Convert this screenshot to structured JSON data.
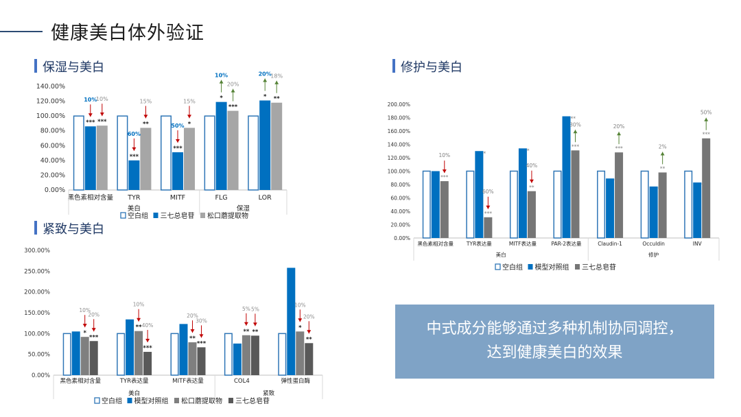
{
  "page": {
    "title": "健康美白体外验证",
    "conclusion_lines": [
      "中式成分能够通过多种机制协同调控，",
      "达到健康美白的效果"
    ],
    "accent_color": "#4472c4"
  },
  "sections": {
    "moisture_whitening": "保湿与美白",
    "repair_whitening": "修护与美白",
    "firming_whitening": "紧致与美白"
  },
  "chart_data": [
    {
      "id": "moisture",
      "type": "bar",
      "categories": [
        "黑色素相对含量",
        "TYR",
        "MITF",
        "FLG",
        "LOR"
      ],
      "groups": [
        {
          "label": "美白",
          "count": 3
        },
        {
          "label": "保湿",
          "count": 2
        }
      ],
      "yticks": [
        "0.00%",
        "20.00%",
        "40.00%",
        "60.00%",
        "80.00%",
        "100.00%",
        "120.00%",
        "140.00%"
      ],
      "ylim": [
        0,
        140
      ],
      "series": [
        {
          "name": "空白组",
          "style": "outline",
          "color": "#2e75b6",
          "values": [
            100,
            100,
            100,
            100,
            100
          ]
        },
        {
          "name": "三七总皂苷",
          "style": "solid",
          "color": "#0070c0",
          "values": [
            86,
            40,
            51,
            119,
            121
          ]
        },
        {
          "name": "松口蘑提取物",
          "style": "solid",
          "color": "#a6a6a6",
          "values": [
            87,
            84,
            84,
            107,
            118
          ]
        }
      ],
      "sig": [
        [
          "***",
          "***"
        ],
        [
          "***",
          "**"
        ],
        [
          "***",
          "*"
        ],
        [
          "*",
          "***"
        ],
        [
          "*",
          "**"
        ]
      ],
      "pct": [
        [
          "10%",
          "10%"
        ],
        [
          "60%",
          "15%"
        ],
        [
          "50%",
          "15%"
        ],
        [
          "10%",
          "20%"
        ],
        [
          "20%",
          "18%"
        ]
      ],
      "dir": [
        "down",
        "down",
        "down",
        "up",
        "up"
      ]
    },
    {
      "id": "repair",
      "type": "bar",
      "categories": [
        "黑色素相对含量",
        "TYR表达量",
        "MITF表达量",
        "PAR-2表达量",
        "Claudin-1",
        "Occuldin",
        "INV"
      ],
      "groups": [
        {
          "label": "美白",
          "count": 4
        },
        {
          "label": "修护",
          "count": 3
        }
      ],
      "yticks": [
        "0.00%",
        "20.00%",
        "40.00%",
        "60.00%",
        "80.00%",
        "100.00%",
        "120.00%",
        "140.00%",
        "160.00%",
        "180.00%",
        "200.00%"
      ],
      "ylim": [
        0,
        200
      ],
      "series": [
        {
          "name": "空白组",
          "style": "outline",
          "color": "#2e75b6",
          "values": [
            100,
            100,
            100,
            100,
            100,
            100,
            100
          ]
        },
        {
          "name": "模型对照组",
          "style": "solid",
          "color": "#0070c0",
          "values": [
            100,
            130,
            134,
            182,
            89,
            77,
            83
          ]
        },
        {
          "name": "三七总皂苷",
          "style": "solid",
          "color": "#767676",
          "values": [
            85,
            31,
            70,
            131,
            128,
            98,
            149
          ]
        }
      ],
      "sig": [
        [
          "",
          "***"
        ],
        [
          "*",
          "***"
        ],
        [
          "*",
          "**"
        ],
        [
          "**",
          "***"
        ],
        [
          "*",
          "***"
        ],
        [
          "*",
          "**"
        ],
        [
          "*",
          "***"
        ]
      ],
      "pct": [
        "10%",
        "60%",
        "40%",
        "30%",
        "20%",
        "2%",
        "50%"
      ],
      "dir": [
        "down",
        "down",
        "down",
        "up",
        "up",
        "up",
        "up"
      ]
    },
    {
      "id": "firming",
      "type": "bar",
      "categories": [
        "黑色素相对含量",
        "TYR表达量",
        "MITF表达量",
        "COL4",
        "弹性蛋白酶"
      ],
      "groups": [
        {
          "label": "美白",
          "count": 3
        },
        {
          "label": "紧致",
          "count": 2
        }
      ],
      "yticks": [
        "0.00%",
        "50.00%",
        "100.00%",
        "150.00%",
        "200.00%",
        "250.00%",
        "300.00%"
      ],
      "ylim": [
        0,
        300
      ],
      "series": [
        {
          "name": "空白组",
          "style": "outline",
          "color": "#2e75b6",
          "values": [
            100,
            100,
            100,
            100,
            100
          ]
        },
        {
          "name": "模型对照组",
          "style": "solid",
          "color": "#0070c0",
          "values": [
            105,
            134,
            123,
            76,
            258
          ]
        },
        {
          "name": "松口蘑提取物",
          "style": "solid",
          "color": "#7f7f7f",
          "values": [
            92,
            106,
            79,
            96,
            105
          ]
        },
        {
          "name": "三七总皂苷",
          "style": "solid",
          "color": "#595959",
          "values": [
            82,
            56,
            67,
            95,
            77
          ]
        }
      ],
      "sig": [
        [
          "*",
          "***"
        ],
        [
          "**",
          "***"
        ],
        [
          "**",
          "***"
        ],
        [
          "**",
          "**"
        ],
        [
          "*",
          "**"
        ]
      ],
      "pct": [
        [
          "10%",
          "20%"
        ],
        [
          "10%",
          "40%"
        ],
        [
          "20%",
          "30%"
        ],
        [
          "5%",
          "5%"
        ],
        [
          "10%",
          "20%"
        ]
      ],
      "dir": [
        "down",
        "down",
        "down",
        "down",
        "down"
      ]
    }
  ]
}
